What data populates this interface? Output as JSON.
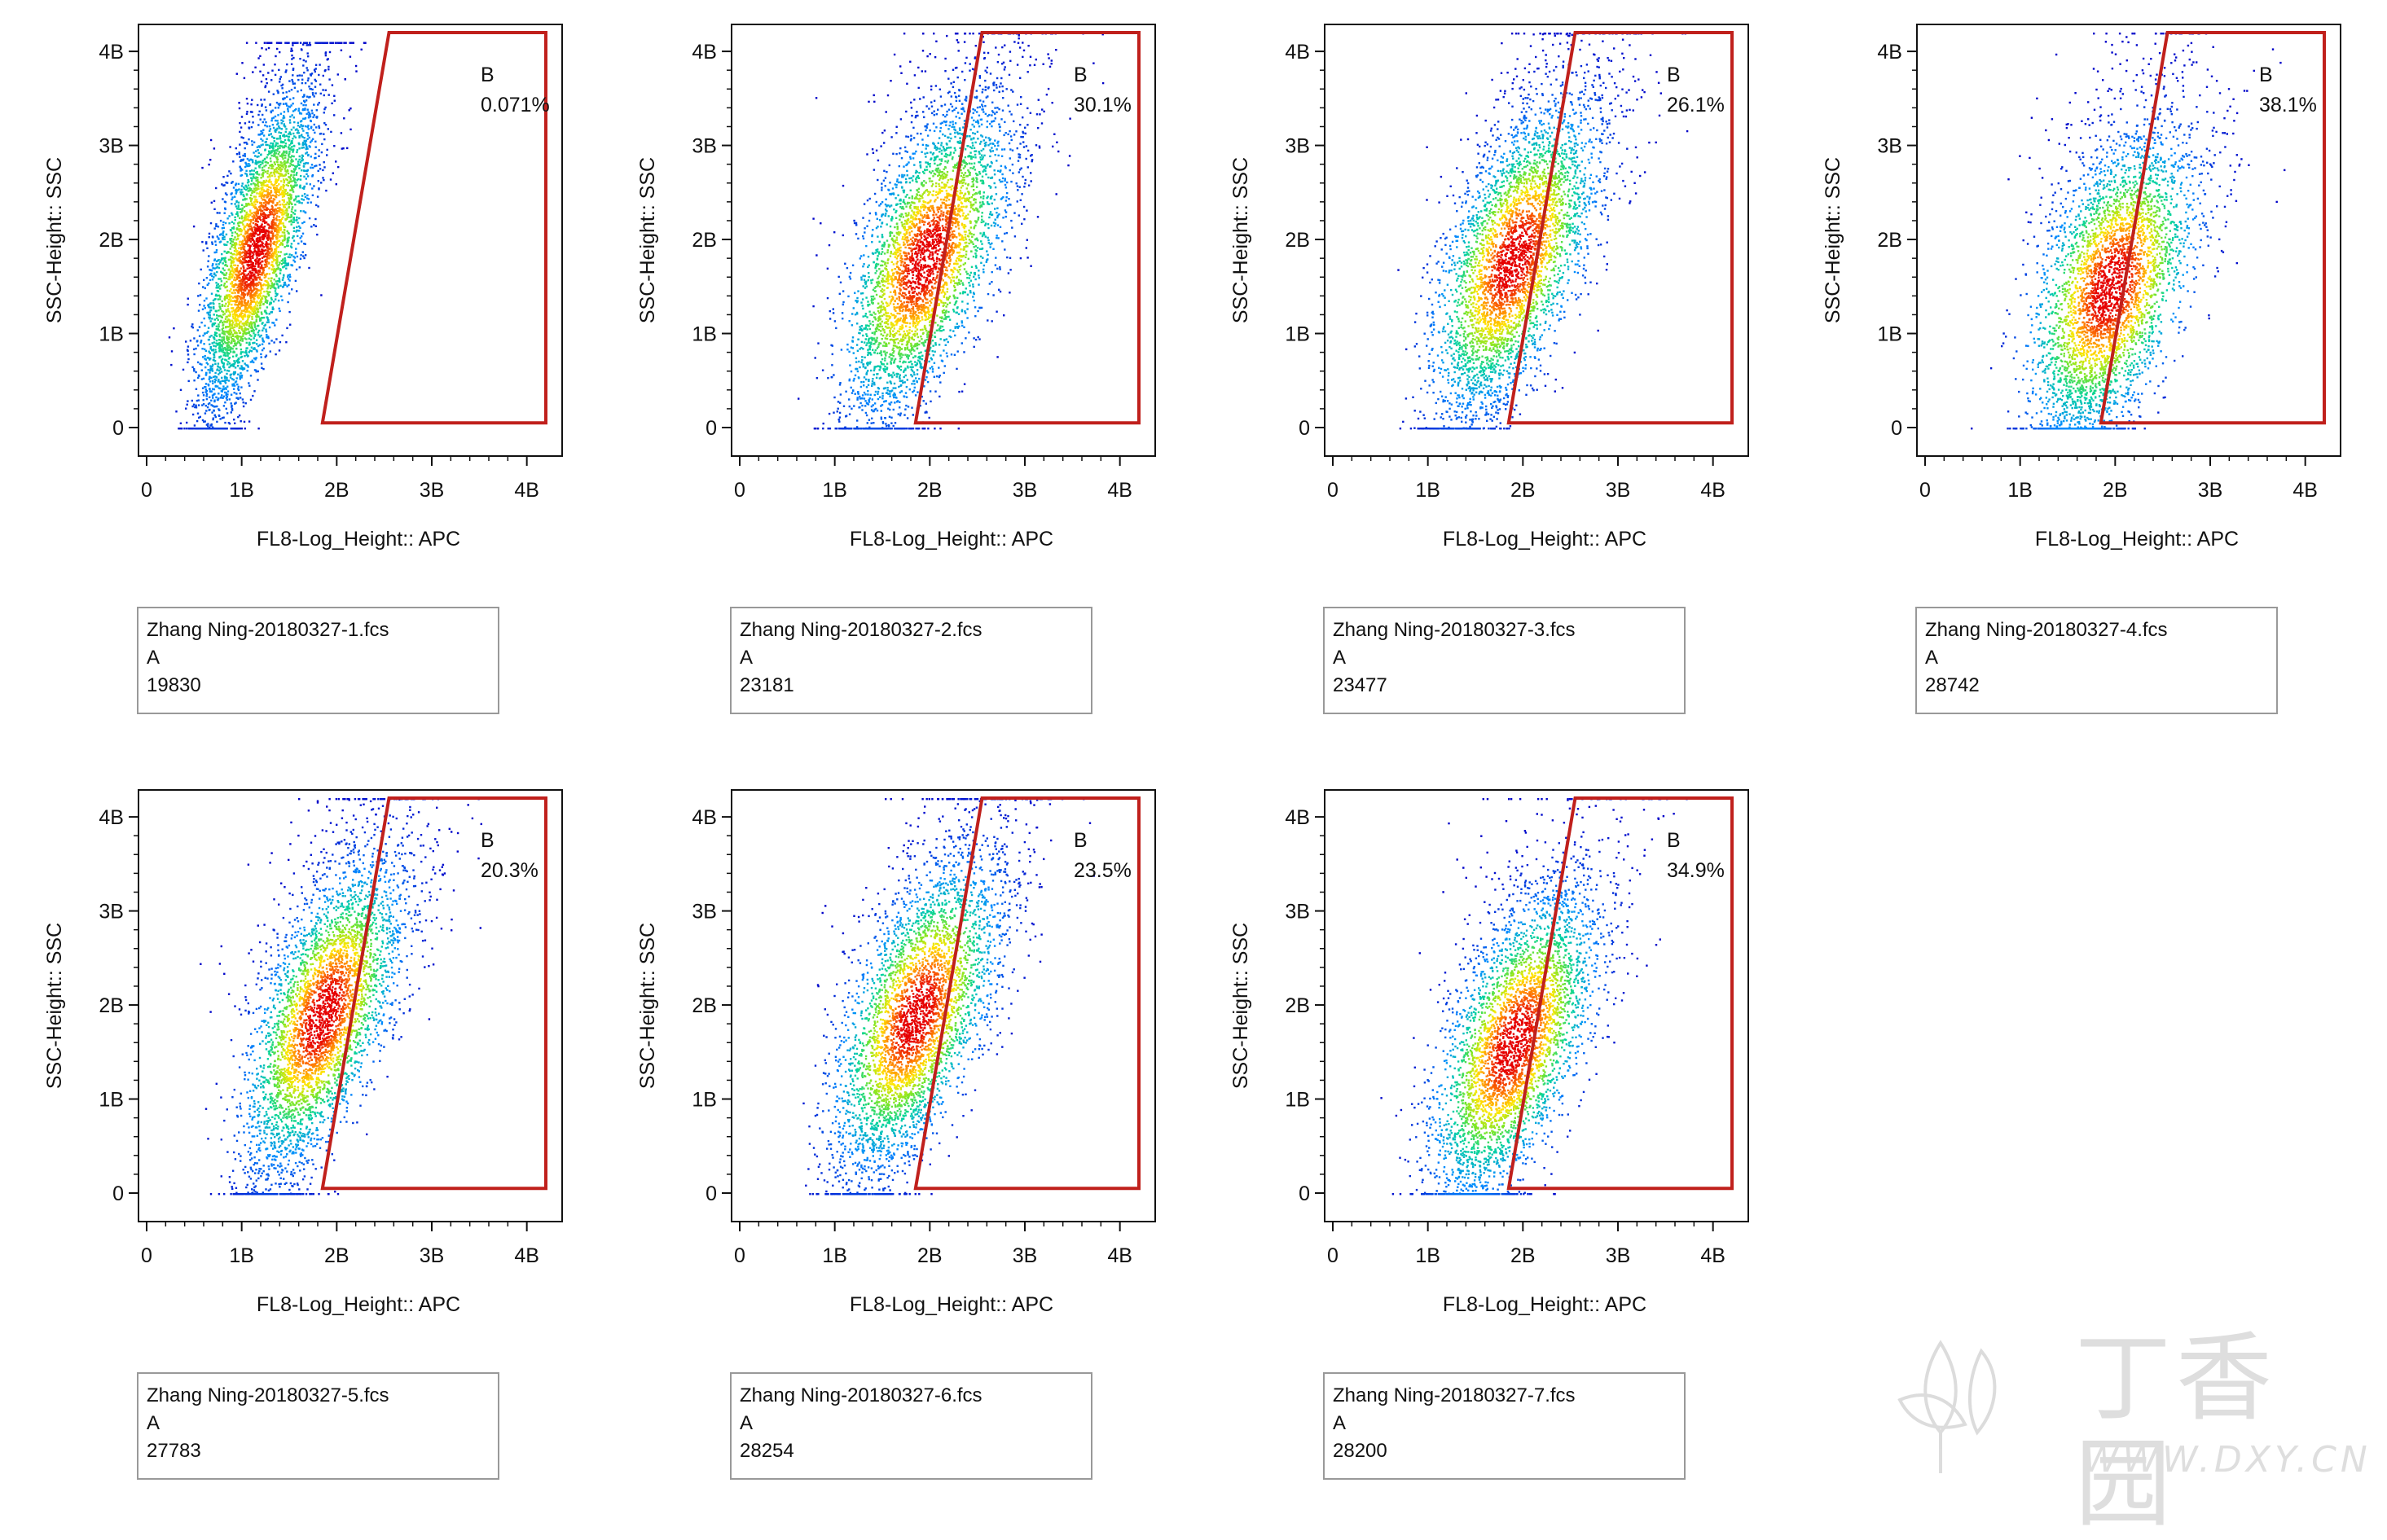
{
  "colors": {
    "gate": "#c0201c",
    "axis": "#111111",
    "density_low": "#0000d0",
    "density_high": "#ff0000"
  },
  "watermark": {
    "brand": "丁香园",
    "url": "WWW.DXY.CN"
  },
  "chart_data": [
    {
      "type": "scatter",
      "subtype": "flow-cytometry-density",
      "file": "Zhang Ning-20180327-1.fcs",
      "population": "A",
      "event_count": "19830",
      "gate": {
        "name": "B",
        "percent": "0.071%"
      },
      "xlabel": "FL8-Log_Height:: APC",
      "ylabel": "SSC-Height:: SSC",
      "x_ticks": [
        "0",
        "1B",
        "2B",
        "3B",
        "4B"
      ],
      "y_ticks": [
        "0",
        "1B",
        "2B",
        "3B",
        "4B"
      ],
      "xlim": [
        0,
        4.2
      ],
      "ylim": [
        0,
        4.2
      ],
      "cluster": {
        "x_center": 1.15,
        "x_spread": 0.28,
        "slope": 0.25,
        "y_max": 4.1,
        "y_peak": 1.9
      }
    },
    {
      "type": "scatter",
      "subtype": "flow-cytometry-density",
      "file": "Zhang Ning-20180327-2.fcs",
      "population": "A",
      "event_count": "23181",
      "gate": {
        "name": "B",
        "percent": "30.1%"
      },
      "xlabel": "FL8-Log_Height:: APC",
      "ylabel": "SSC-Height:: SSC",
      "x_ticks": [
        "0",
        "1B",
        "2B",
        "3B",
        "4B"
      ],
      "y_ticks": [
        "0",
        "1B",
        "2B",
        "3B",
        "4B"
      ],
      "xlim": [
        0,
        4.2
      ],
      "ylim": [
        0,
        4.2
      ],
      "cluster": {
        "x_center": 1.95,
        "x_spread": 0.45,
        "slope": 0.3,
        "y_max": 4.2,
        "y_peak": 1.8
      }
    },
    {
      "type": "scatter",
      "subtype": "flow-cytometry-density",
      "file": "Zhang Ning-20180327-3.fcs",
      "population": "A",
      "event_count": "23477",
      "gate": {
        "name": "B",
        "percent": "26.1%"
      },
      "xlabel": "FL8-Log_Height:: APC",
      "ylabel": "SSC-Height:: SSC",
      "x_ticks": [
        "0",
        "1B",
        "2B",
        "3B",
        "4B"
      ],
      "y_ticks": [
        "0",
        "1B",
        "2B",
        "3B",
        "4B"
      ],
      "xlim": [
        0,
        4.2
      ],
      "ylim": [
        0,
        4.2
      ],
      "cluster": {
        "x_center": 1.9,
        "x_spread": 0.45,
        "slope": 0.3,
        "y_max": 4.2,
        "y_peak": 1.8
      }
    },
    {
      "type": "scatter",
      "subtype": "flow-cytometry-density",
      "file": "Zhang Ning-20180327-4.fcs",
      "population": "A",
      "event_count": "28742",
      "gate": {
        "name": "B",
        "percent": "38.1%"
      },
      "xlabel": "FL8-Log_Height:: APC",
      "ylabel": "SSC-Height:: SSC",
      "x_ticks": [
        "0",
        "1B",
        "2B",
        "3B",
        "4B"
      ],
      "y_ticks": [
        "0",
        "1B",
        "2B",
        "3B",
        "4B"
      ],
      "xlim": [
        0,
        4.2
      ],
      "ylim": [
        0,
        4.2
      ],
      "cluster": {
        "x_center": 1.95,
        "x_spread": 0.5,
        "slope": 0.25,
        "y_max": 4.2,
        "y_peak": 1.5
      }
    },
    {
      "type": "scatter",
      "subtype": "flow-cytometry-density",
      "file": "Zhang Ning-20180327-5.fcs",
      "population": "A",
      "event_count": "27783",
      "gate": {
        "name": "B",
        "percent": "20.3%"
      },
      "xlabel": "FL8-Log_Height:: APC",
      "ylabel": "SSC-Height:: SSC",
      "x_ticks": [
        "0",
        "1B",
        "2B",
        "3B",
        "4B"
      ],
      "y_ticks": [
        "0",
        "1B",
        "2B",
        "3B",
        "4B"
      ],
      "xlim": [
        0,
        4.2
      ],
      "ylim": [
        0,
        4.2
      ],
      "cluster": {
        "x_center": 1.85,
        "x_spread": 0.42,
        "slope": 0.3,
        "y_max": 4.2,
        "y_peak": 1.9
      }
    },
    {
      "type": "scatter",
      "subtype": "flow-cytometry-density",
      "file": "Zhang Ning-20180327-6.fcs",
      "population": "A",
      "event_count": "28254",
      "gate": {
        "name": "B",
        "percent": "23.5%"
      },
      "xlabel": "FL8-Log_Height:: APC",
      "ylabel": "SSC-Height:: SSC",
      "x_ticks": [
        "0",
        "1B",
        "2B",
        "3B",
        "4B"
      ],
      "y_ticks": [
        "0",
        "1B",
        "2B",
        "3B",
        "4B"
      ],
      "xlim": [
        0,
        4.2
      ],
      "ylim": [
        0,
        4.2
      ],
      "cluster": {
        "x_center": 1.85,
        "x_spread": 0.45,
        "slope": 0.3,
        "y_max": 4.2,
        "y_peak": 1.9
      }
    },
    {
      "type": "scatter",
      "subtype": "flow-cytometry-density",
      "file": "Zhang Ning-20180327-7.fcs",
      "population": "A",
      "event_count": "28200",
      "gate": {
        "name": "B",
        "percent": "34.9%"
      },
      "xlabel": "FL8-Log_Height:: APC",
      "ylabel": "SSC-Height:: SSC",
      "x_ticks": [
        "0",
        "1B",
        "2B",
        "3B",
        "4B"
      ],
      "y_ticks": [
        "0",
        "1B",
        "2B",
        "3B",
        "4B"
      ],
      "xlim": [
        0,
        4.2
      ],
      "ylim": [
        0,
        4.2
      ],
      "cluster": {
        "x_center": 1.9,
        "x_spread": 0.45,
        "slope": 0.3,
        "y_max": 4.2,
        "y_peak": 1.6
      }
    }
  ]
}
